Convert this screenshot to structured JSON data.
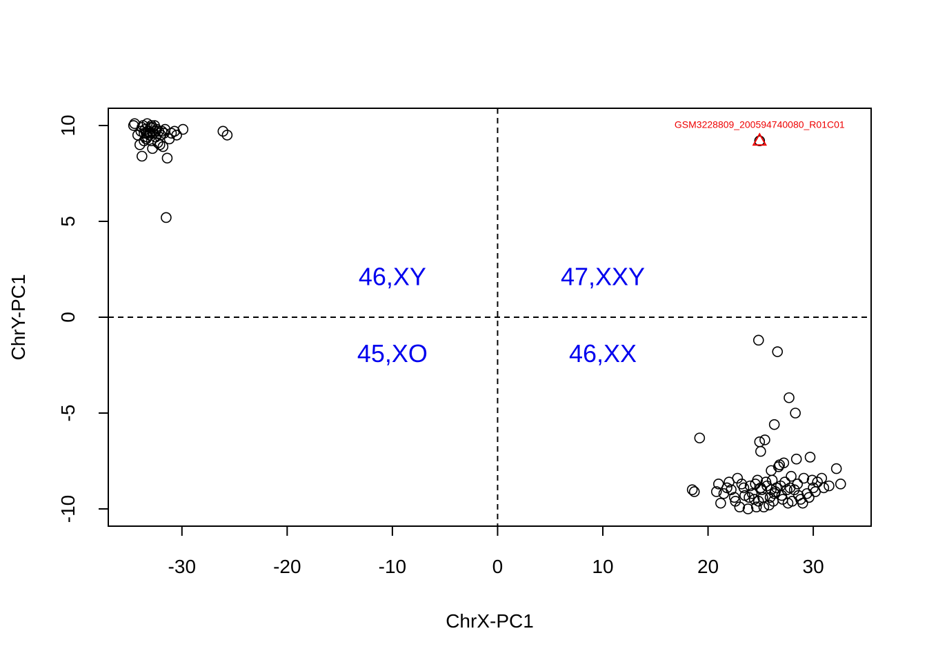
{
  "chart_data": {
    "type": "scatter",
    "title": "",
    "xlabel": "ChrX-PC1",
    "ylabel": "ChrY-PC1",
    "xlim": [
      -37,
      35.5
    ],
    "ylim": [
      -10.9,
      10.9
    ],
    "xticks": [
      -30,
      -20,
      -10,
      0,
      10,
      20,
      30
    ],
    "yticks": [
      -10,
      -5,
      0,
      5,
      10
    ],
    "xtick_labels": [
      "-30",
      "-20",
      "-10",
      "0",
      "10",
      "20",
      "30"
    ],
    "ytick_labels": [
      "-10",
      "-5",
      "0",
      "5",
      "10"
    ],
    "grid": false,
    "reference_lines": {
      "x": 0,
      "y": 0,
      "style": "dashed"
    },
    "region_labels": [
      {
        "text": "46,XY",
        "x": -10,
        "y": 2.1
      },
      {
        "text": "47,XXY",
        "x": 10,
        "y": 2.1
      },
      {
        "text": "45,XO",
        "x": -10,
        "y": -1.9
      },
      {
        "text": "46,XX",
        "x": 10,
        "y": -1.9
      }
    ],
    "colors": {
      "points": "#000000",
      "region_text": "#0000ee",
      "highlight": "#ee0000"
    },
    "highlight": {
      "label": "GSM3228809_200594740080_R01C01",
      "x": 24.9,
      "y": 9.2,
      "marker": "triangle"
    },
    "male_points": [
      [
        -34.5,
        10.1
      ],
      [
        -34.2,
        9.5
      ],
      [
        -34.0,
        9.0
      ],
      [
        -33.8,
        8.4
      ],
      [
        -33.7,
        10.0
      ],
      [
        -33.6,
        9.6
      ],
      [
        -33.5,
        9.8
      ],
      [
        -33.4,
        9.3
      ],
      [
        -33.3,
        10.1
      ],
      [
        -33.2,
        9.7
      ],
      [
        -33.1,
        9.5
      ],
      [
        -33.0,
        9.9
      ],
      [
        -32.9,
        9.2
      ],
      [
        -32.8,
        8.8
      ],
      [
        -32.7,
        9.6
      ],
      [
        -32.6,
        10.0
      ],
      [
        -32.5,
        9.4
      ],
      [
        -32.4,
        9.8
      ],
      [
        -32.3,
        9.1
      ],
      [
        -32.2,
        9.7
      ],
      [
        -32.0,
        9.5
      ],
      [
        -31.8,
        8.9
      ],
      [
        -31.6,
        9.8
      ],
      [
        -31.4,
        8.3
      ],
      [
        -31.2,
        9.3
      ],
      [
        -31.0,
        9.6
      ],
      [
        -30.7,
        9.7
      ],
      [
        -30.5,
        9.5
      ],
      [
        -29.9,
        9.8
      ],
      [
        -33.9,
        9.7
      ],
      [
        -33.3,
        9.4
      ],
      [
        -32.8,
        9.9
      ],
      [
        -33.6,
        9.2
      ],
      [
        -32.1,
        9.0
      ],
      [
        -31.7,
        9.6
      ],
      [
        -33.0,
        9.6
      ],
      [
        -31.5,
        5.2
      ],
      [
        -26.1,
        9.7
      ],
      [
        -25.7,
        9.5
      ],
      [
        -34.6,
        10.0
      ],
      [
        -33.8,
        9.9
      ],
      [
        -32.5,
        9.7
      ],
      [
        -32.9,
        10.0
      ],
      [
        -33.4,
        9.6
      ],
      [
        -31.9,
        9.7
      ]
    ],
    "female_points": [
      [
        24.8,
        -1.2
      ],
      [
        26.6,
        -1.8
      ],
      [
        27.7,
        -4.2
      ],
      [
        28.3,
        -5.0
      ],
      [
        26.3,
        -5.6
      ],
      [
        19.2,
        -6.3
      ],
      [
        25.4,
        -6.4
      ],
      [
        24.9,
        -6.5
      ],
      [
        25.0,
        -7.0
      ],
      [
        18.5,
        -9.0
      ],
      [
        18.7,
        -9.1
      ],
      [
        21.0,
        -8.7
      ],
      [
        21.2,
        -9.7
      ],
      [
        22.0,
        -8.6
      ],
      [
        22.5,
        -9.4
      ],
      [
        23.0,
        -9.9
      ],
      [
        23.4,
        -8.9
      ],
      [
        23.8,
        -10.0
      ],
      [
        24.2,
        -9.2
      ],
      [
        24.5,
        -8.7
      ],
      [
        24.8,
        -9.6
      ],
      [
        25.1,
        -9.0
      ],
      [
        25.3,
        -9.9
      ],
      [
        25.6,
        -8.8
      ],
      [
        25.9,
        -9.4
      ],
      [
        26.1,
        -8.5
      ],
      [
        26.4,
        -9.1
      ],
      [
        26.7,
        -7.8
      ],
      [
        27.0,
        -9.3
      ],
      [
        27.3,
        -8.6
      ],
      [
        27.6,
        -9.7
      ],
      [
        27.9,
        -8.3
      ],
      [
        28.2,
        -9.0
      ],
      [
        28.5,
        -8.7
      ],
      [
        28.8,
        -9.5
      ],
      [
        29.1,
        -8.4
      ],
      [
        29.4,
        -9.2
      ],
      [
        29.7,
        -7.3
      ],
      [
        30.0,
        -8.9
      ],
      [
        30.4,
        -8.6
      ],
      [
        30.8,
        -8.4
      ],
      [
        31.5,
        -8.8
      ],
      [
        32.2,
        -7.9
      ],
      [
        32.6,
        -8.7
      ],
      [
        26.0,
        -8.0
      ],
      [
        26.8,
        -7.7
      ],
      [
        27.2,
        -7.6
      ],
      [
        28.4,
        -7.4
      ],
      [
        22.8,
        -8.4
      ],
      [
        23.5,
        -9.3
      ],
      [
        24.0,
        -8.8
      ],
      [
        24.6,
        -9.9
      ],
      [
        25.2,
        -9.4
      ],
      [
        25.8,
        -9.8
      ],
      [
        26.2,
        -9.6
      ],
      [
        26.5,
        -8.9
      ],
      [
        27.5,
        -9.0
      ],
      [
        28.0,
        -9.6
      ],
      [
        29.0,
        -9.7
      ],
      [
        29.6,
        -9.4
      ],
      [
        30.2,
        -9.1
      ],
      [
        21.5,
        -9.2
      ],
      [
        22.2,
        -9.0
      ],
      [
        20.8,
        -9.1
      ],
      [
        23.2,
        -8.7
      ],
      [
        24.4,
        -9.5
      ],
      [
        25.5,
        -8.6
      ],
      [
        26.9,
        -8.8
      ],
      [
        27.8,
        -8.9
      ],
      [
        28.6,
        -9.3
      ],
      [
        29.9,
        -8.5
      ],
      [
        31.0,
        -8.9
      ],
      [
        25.0,
        -8.9
      ],
      [
        26.3,
        -9.2
      ],
      [
        27.1,
        -9.5
      ],
      [
        24.7,
        -8.5
      ],
      [
        23.9,
        -9.4
      ],
      [
        22.6,
        -9.6
      ],
      [
        21.8,
        -8.9
      ],
      [
        26.0,
        -9.0
      ]
    ]
  }
}
